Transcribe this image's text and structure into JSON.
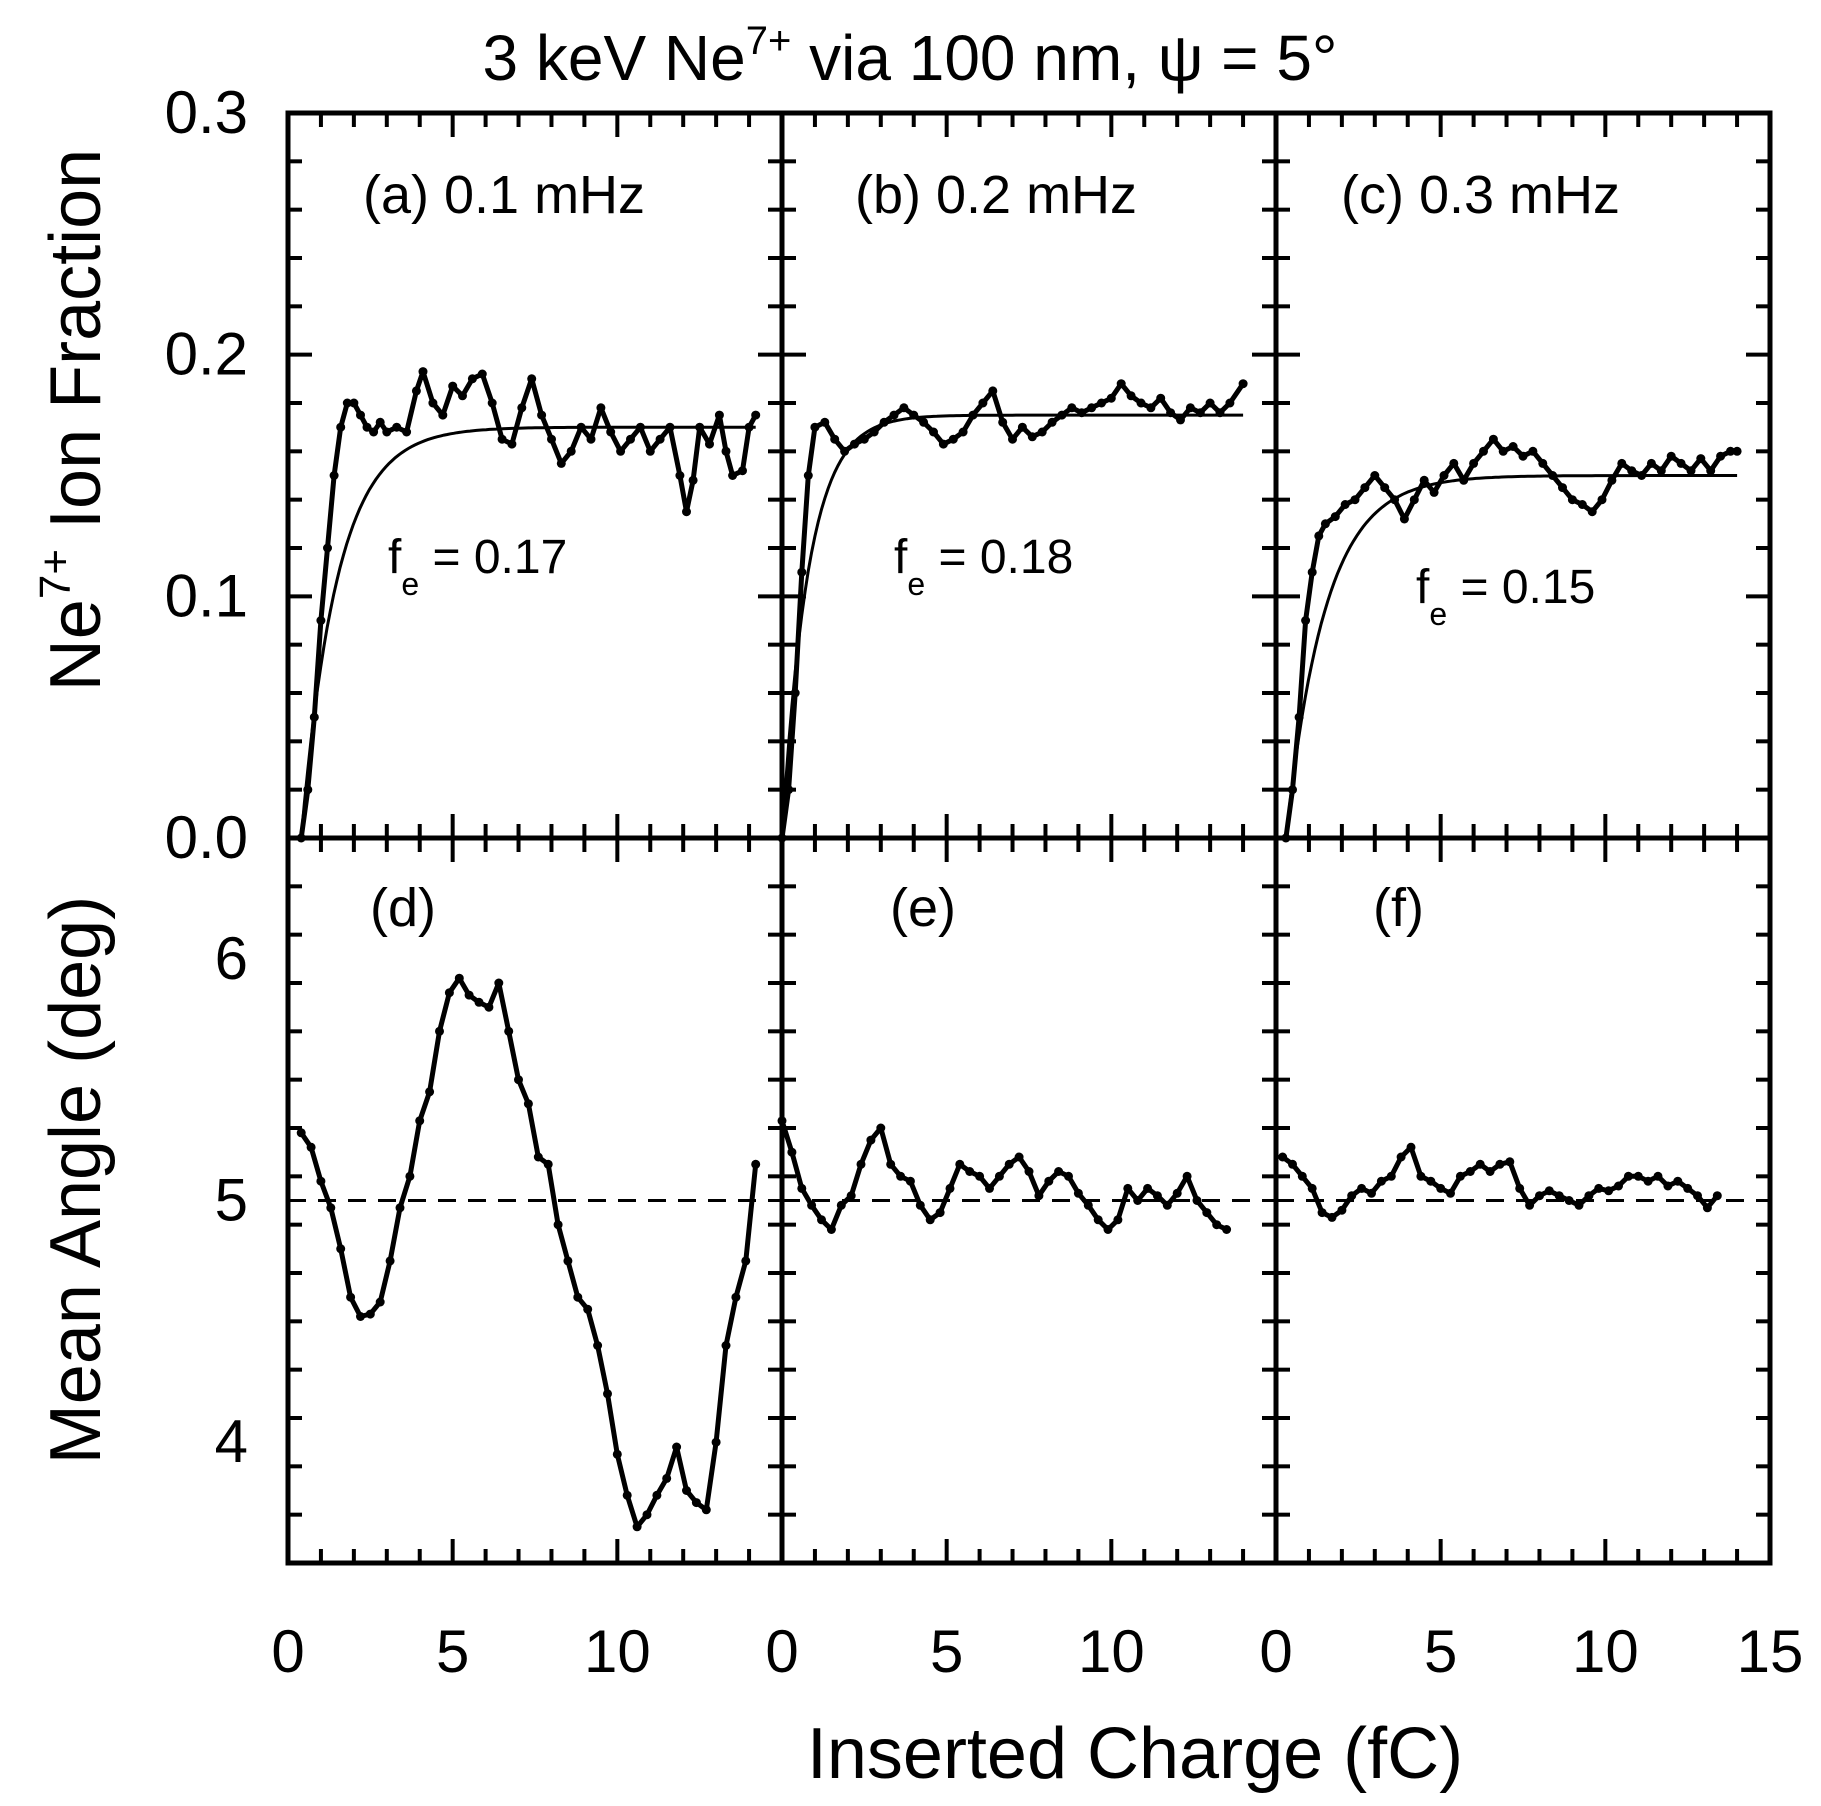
{
  "title": {
    "prefix": "3 keV Ne",
    "superscript": "7+",
    "suffix": " via 100 nm, ψ = 5°"
  },
  "chart_data": {
    "type": "line",
    "layout": "2x3 panel grid, shared x axis",
    "xlabel": "Inserted Charge (fC)",
    "xlim": [
      0,
      15
    ],
    "xticks": [
      "0",
      "5",
      "10",
      "15"
    ],
    "rows": [
      {
        "ylabel": {
          "prefix": "Ne",
          "superscript": "7+",
          "suffix": " Ion Fraction"
        },
        "ylim": [
          0,
          0.3
        ],
        "yticks": [
          "0.0",
          "0.1",
          "0.2",
          "0.3"
        ]
      },
      {
        "ylabel": {
          "text": "Mean Angle (deg)"
        },
        "ylim": [
          3.5,
          6.5
        ],
        "yticks": [
          "4",
          "5",
          "6"
        ],
        "reference_line": {
          "y": 5,
          "style": "dashed"
        }
      }
    ],
    "panels": [
      {
        "id": "a",
        "label": "(a) 0.1 mHz",
        "row": 0,
        "col": 0,
        "annotation": {
          "symbol": "f",
          "subscript": "e",
          "value": "= 0.17"
        },
        "fit": {
          "type": "saturating",
          "fe": 0.17,
          "x0": 0.4,
          "rate": 1.1,
          "xmax": 14.2
        },
        "series": [
          [
            0.4,
            0.0
          ],
          [
            0.6,
            0.02
          ],
          [
            0.8,
            0.05
          ],
          [
            1.0,
            0.09
          ],
          [
            1.2,
            0.12
          ],
          [
            1.4,
            0.15
          ],
          [
            1.6,
            0.17
          ],
          [
            1.8,
            0.18
          ],
          [
            2.0,
            0.18
          ],
          [
            2.2,
            0.175
          ],
          [
            2.4,
            0.17
          ],
          [
            2.6,
            0.168
          ],
          [
            2.8,
            0.172
          ],
          [
            3.0,
            0.168
          ],
          [
            3.3,
            0.17
          ],
          [
            3.6,
            0.168
          ],
          [
            3.9,
            0.185
          ],
          [
            4.1,
            0.193
          ],
          [
            4.4,
            0.18
          ],
          [
            4.7,
            0.175
          ],
          [
            5.0,
            0.187
          ],
          [
            5.3,
            0.183
          ],
          [
            5.6,
            0.19
          ],
          [
            5.9,
            0.192
          ],
          [
            6.2,
            0.18
          ],
          [
            6.5,
            0.165
          ],
          [
            6.8,
            0.163
          ],
          [
            7.1,
            0.178
          ],
          [
            7.4,
            0.19
          ],
          [
            7.7,
            0.175
          ],
          [
            8.0,
            0.165
          ],
          [
            8.3,
            0.155
          ],
          [
            8.6,
            0.16
          ],
          [
            8.9,
            0.17
          ],
          [
            9.2,
            0.165
          ],
          [
            9.5,
            0.178
          ],
          [
            9.8,
            0.168
          ],
          [
            10.1,
            0.16
          ],
          [
            10.4,
            0.165
          ],
          [
            10.7,
            0.17
          ],
          [
            11.0,
            0.16
          ],
          [
            11.3,
            0.165
          ],
          [
            11.6,
            0.17
          ],
          [
            11.9,
            0.15
          ],
          [
            12.1,
            0.135
          ],
          [
            12.3,
            0.148
          ],
          [
            12.5,
            0.17
          ],
          [
            12.8,
            0.163
          ],
          [
            13.1,
            0.175
          ],
          [
            13.3,
            0.16
          ],
          [
            13.5,
            0.15
          ],
          [
            13.8,
            0.152
          ],
          [
            14.0,
            0.17
          ],
          [
            14.2,
            0.175
          ]
        ]
      },
      {
        "id": "b",
        "label": "(b) 0.2 mHz",
        "row": 0,
        "col": 1,
        "annotation": {
          "symbol": "f",
          "subscript": "e",
          "value": "= 0.18"
        },
        "fit": {
          "type": "saturating",
          "fe": 0.175,
          "x0": 0.0,
          "rate": 0.8,
          "xmax": 14.0
        },
        "series": [
          [
            0.0,
            0.0
          ],
          [
            0.2,
            0.02
          ],
          [
            0.4,
            0.06
          ],
          [
            0.6,
            0.11
          ],
          [
            0.8,
            0.15
          ],
          [
            1.0,
            0.17
          ],
          [
            1.3,
            0.172
          ],
          [
            1.6,
            0.165
          ],
          [
            1.9,
            0.16
          ],
          [
            2.2,
            0.163
          ],
          [
            2.5,
            0.165
          ],
          [
            2.8,
            0.168
          ],
          [
            3.1,
            0.172
          ],
          [
            3.4,
            0.175
          ],
          [
            3.7,
            0.178
          ],
          [
            4.0,
            0.175
          ],
          [
            4.3,
            0.172
          ],
          [
            4.6,
            0.168
          ],
          [
            4.9,
            0.163
          ],
          [
            5.2,
            0.165
          ],
          [
            5.5,
            0.168
          ],
          [
            5.8,
            0.175
          ],
          [
            6.1,
            0.18
          ],
          [
            6.4,
            0.185
          ],
          [
            6.7,
            0.172
          ],
          [
            7.0,
            0.165
          ],
          [
            7.3,
            0.17
          ],
          [
            7.6,
            0.166
          ],
          [
            7.9,
            0.168
          ],
          [
            8.2,
            0.172
          ],
          [
            8.5,
            0.175
          ],
          [
            8.8,
            0.178
          ],
          [
            9.1,
            0.176
          ],
          [
            9.4,
            0.178
          ],
          [
            9.7,
            0.18
          ],
          [
            10.0,
            0.182
          ],
          [
            10.3,
            0.188
          ],
          [
            10.6,
            0.183
          ],
          [
            10.9,
            0.18
          ],
          [
            11.2,
            0.178
          ],
          [
            11.5,
            0.182
          ],
          [
            11.8,
            0.176
          ],
          [
            12.1,
            0.173
          ],
          [
            12.4,
            0.178
          ],
          [
            12.7,
            0.176
          ],
          [
            13.0,
            0.18
          ],
          [
            13.3,
            0.176
          ],
          [
            13.6,
            0.18
          ],
          [
            14.0,
            0.188
          ]
        ]
      },
      {
        "id": "c",
        "label": "(c) 0.3 mHz",
        "row": 0,
        "col": 2,
        "annotation": {
          "symbol": "f",
          "subscript": "e",
          "value": "= 0.15"
        },
        "fit": {
          "type": "saturating",
          "fe": 0.15,
          "x0": 0.3,
          "rate": 1.2,
          "xmax": 14.0
        },
        "series": [
          [
            0.3,
            0.0
          ],
          [
            0.5,
            0.02
          ],
          [
            0.7,
            0.05
          ],
          [
            0.9,
            0.09
          ],
          [
            1.1,
            0.11
          ],
          [
            1.3,
            0.125
          ],
          [
            1.5,
            0.13
          ],
          [
            1.8,
            0.133
          ],
          [
            2.1,
            0.138
          ],
          [
            2.4,
            0.14
          ],
          [
            2.7,
            0.145
          ],
          [
            3.0,
            0.15
          ],
          [
            3.3,
            0.145
          ],
          [
            3.6,
            0.14
          ],
          [
            3.9,
            0.132
          ],
          [
            4.2,
            0.14
          ],
          [
            4.5,
            0.148
          ],
          [
            4.8,
            0.143
          ],
          [
            5.1,
            0.15
          ],
          [
            5.4,
            0.155
          ],
          [
            5.7,
            0.148
          ],
          [
            6.0,
            0.155
          ],
          [
            6.3,
            0.16
          ],
          [
            6.6,
            0.165
          ],
          [
            6.9,
            0.16
          ],
          [
            7.2,
            0.162
          ],
          [
            7.5,
            0.158
          ],
          [
            7.8,
            0.16
          ],
          [
            8.1,
            0.155
          ],
          [
            8.4,
            0.15
          ],
          [
            8.7,
            0.145
          ],
          [
            9.0,
            0.14
          ],
          [
            9.3,
            0.138
          ],
          [
            9.6,
            0.135
          ],
          [
            9.9,
            0.14
          ],
          [
            10.2,
            0.148
          ],
          [
            10.5,
            0.155
          ],
          [
            10.8,
            0.152
          ],
          [
            11.1,
            0.15
          ],
          [
            11.4,
            0.155
          ],
          [
            11.7,
            0.152
          ],
          [
            12.0,
            0.158
          ],
          [
            12.3,
            0.155
          ],
          [
            12.6,
            0.152
          ],
          [
            12.9,
            0.157
          ],
          [
            13.2,
            0.152
          ],
          [
            13.5,
            0.158
          ],
          [
            13.8,
            0.16
          ],
          [
            14.0,
            0.16
          ]
        ]
      },
      {
        "id": "d",
        "label": "(d)",
        "row": 1,
        "col": 0,
        "series": [
          [
            0.4,
            5.28
          ],
          [
            0.7,
            5.22
          ],
          [
            1.0,
            5.08
          ],
          [
            1.3,
            4.97
          ],
          [
            1.6,
            4.8
          ],
          [
            1.9,
            4.6
          ],
          [
            2.2,
            4.52
          ],
          [
            2.5,
            4.53
          ],
          [
            2.8,
            4.58
          ],
          [
            3.1,
            4.75
          ],
          [
            3.4,
            4.97
          ],
          [
            3.7,
            5.1
          ],
          [
            4.0,
            5.33
          ],
          [
            4.3,
            5.45
          ],
          [
            4.6,
            5.7
          ],
          [
            4.9,
            5.86
          ],
          [
            5.2,
            5.92
          ],
          [
            5.5,
            5.85
          ],
          [
            5.8,
            5.82
          ],
          [
            6.1,
            5.8
          ],
          [
            6.4,
            5.9
          ],
          [
            6.7,
            5.7
          ],
          [
            7.0,
            5.5
          ],
          [
            7.3,
            5.4
          ],
          [
            7.6,
            5.18
          ],
          [
            7.9,
            5.15
          ],
          [
            8.2,
            4.9
          ],
          [
            8.5,
            4.75
          ],
          [
            8.8,
            4.6
          ],
          [
            9.1,
            4.55
          ],
          [
            9.4,
            4.4
          ],
          [
            9.7,
            4.2
          ],
          [
            10.0,
            3.95
          ],
          [
            10.3,
            3.78
          ],
          [
            10.6,
            3.65
          ],
          [
            10.9,
            3.7
          ],
          [
            11.2,
            3.78
          ],
          [
            11.5,
            3.85
          ],
          [
            11.8,
            3.98
          ],
          [
            12.1,
            3.8
          ],
          [
            12.4,
            3.75
          ],
          [
            12.7,
            3.72
          ],
          [
            13.0,
            4.0
          ],
          [
            13.3,
            4.4
          ],
          [
            13.6,
            4.6
          ],
          [
            13.9,
            4.75
          ],
          [
            14.2,
            5.15
          ]
        ]
      },
      {
        "id": "e",
        "label": "(e)",
        "row": 1,
        "col": 1,
        "series": [
          [
            0.0,
            5.33
          ],
          [
            0.3,
            5.2
          ],
          [
            0.6,
            5.05
          ],
          [
            0.9,
            4.98
          ],
          [
            1.2,
            4.92
          ],
          [
            1.5,
            4.88
          ],
          [
            1.8,
            4.98
          ],
          [
            2.1,
            5.02
          ],
          [
            2.4,
            5.15
          ],
          [
            2.7,
            5.25
          ],
          [
            3.0,
            5.3
          ],
          [
            3.3,
            5.15
          ],
          [
            3.6,
            5.1
          ],
          [
            3.9,
            5.08
          ],
          [
            4.2,
            4.98
          ],
          [
            4.5,
            4.92
          ],
          [
            4.8,
            4.95
          ],
          [
            5.1,
            5.05
          ],
          [
            5.4,
            5.15
          ],
          [
            5.7,
            5.12
          ],
          [
            6.0,
            5.1
          ],
          [
            6.3,
            5.05
          ],
          [
            6.6,
            5.1
          ],
          [
            6.9,
            5.15
          ],
          [
            7.2,
            5.18
          ],
          [
            7.5,
            5.12
          ],
          [
            7.8,
            5.02
          ],
          [
            8.1,
            5.08
          ],
          [
            8.4,
            5.12
          ],
          [
            8.7,
            5.1
          ],
          [
            9.0,
            5.03
          ],
          [
            9.3,
            4.98
          ],
          [
            9.6,
            4.92
          ],
          [
            9.9,
            4.88
          ],
          [
            10.2,
            4.92
          ],
          [
            10.5,
            5.05
          ],
          [
            10.8,
            5.0
          ],
          [
            11.1,
            5.05
          ],
          [
            11.4,
            5.02
          ],
          [
            11.7,
            4.98
          ],
          [
            12.0,
            5.03
          ],
          [
            12.3,
            5.1
          ],
          [
            12.6,
            5.0
          ],
          [
            12.9,
            4.95
          ],
          [
            13.2,
            4.9
          ],
          [
            13.5,
            4.88
          ]
        ]
      },
      {
        "id": "f",
        "label": "(f)",
        "row": 1,
        "col": 2,
        "series": [
          [
            0.2,
            5.18
          ],
          [
            0.5,
            5.15
          ],
          [
            0.8,
            5.1
          ],
          [
            1.1,
            5.05
          ],
          [
            1.4,
            4.95
          ],
          [
            1.7,
            4.93
          ],
          [
            2.0,
            4.96
          ],
          [
            2.3,
            5.02
          ],
          [
            2.6,
            5.05
          ],
          [
            2.9,
            5.03
          ],
          [
            3.2,
            5.08
          ],
          [
            3.5,
            5.1
          ],
          [
            3.8,
            5.18
          ],
          [
            4.1,
            5.22
          ],
          [
            4.4,
            5.1
          ],
          [
            4.7,
            5.08
          ],
          [
            5.0,
            5.05
          ],
          [
            5.3,
            5.03
          ],
          [
            5.6,
            5.1
          ],
          [
            5.9,
            5.12
          ],
          [
            6.2,
            5.15
          ],
          [
            6.5,
            5.12
          ],
          [
            6.8,
            5.15
          ],
          [
            7.1,
            5.16
          ],
          [
            7.4,
            5.05
          ],
          [
            7.7,
            4.98
          ],
          [
            8.0,
            5.02
          ],
          [
            8.3,
            5.04
          ],
          [
            8.6,
            5.02
          ],
          [
            8.9,
            5.0
          ],
          [
            9.2,
            4.98
          ],
          [
            9.5,
            5.02
          ],
          [
            9.8,
            5.05
          ],
          [
            10.1,
            5.04
          ],
          [
            10.4,
            5.06
          ],
          [
            10.7,
            5.1
          ],
          [
            11.0,
            5.1
          ],
          [
            11.3,
            5.08
          ],
          [
            11.6,
            5.1
          ],
          [
            11.9,
            5.06
          ],
          [
            12.2,
            5.08
          ],
          [
            12.5,
            5.05
          ],
          [
            12.8,
            5.02
          ],
          [
            13.1,
            4.97
          ],
          [
            13.4,
            5.02
          ]
        ]
      }
    ]
  }
}
